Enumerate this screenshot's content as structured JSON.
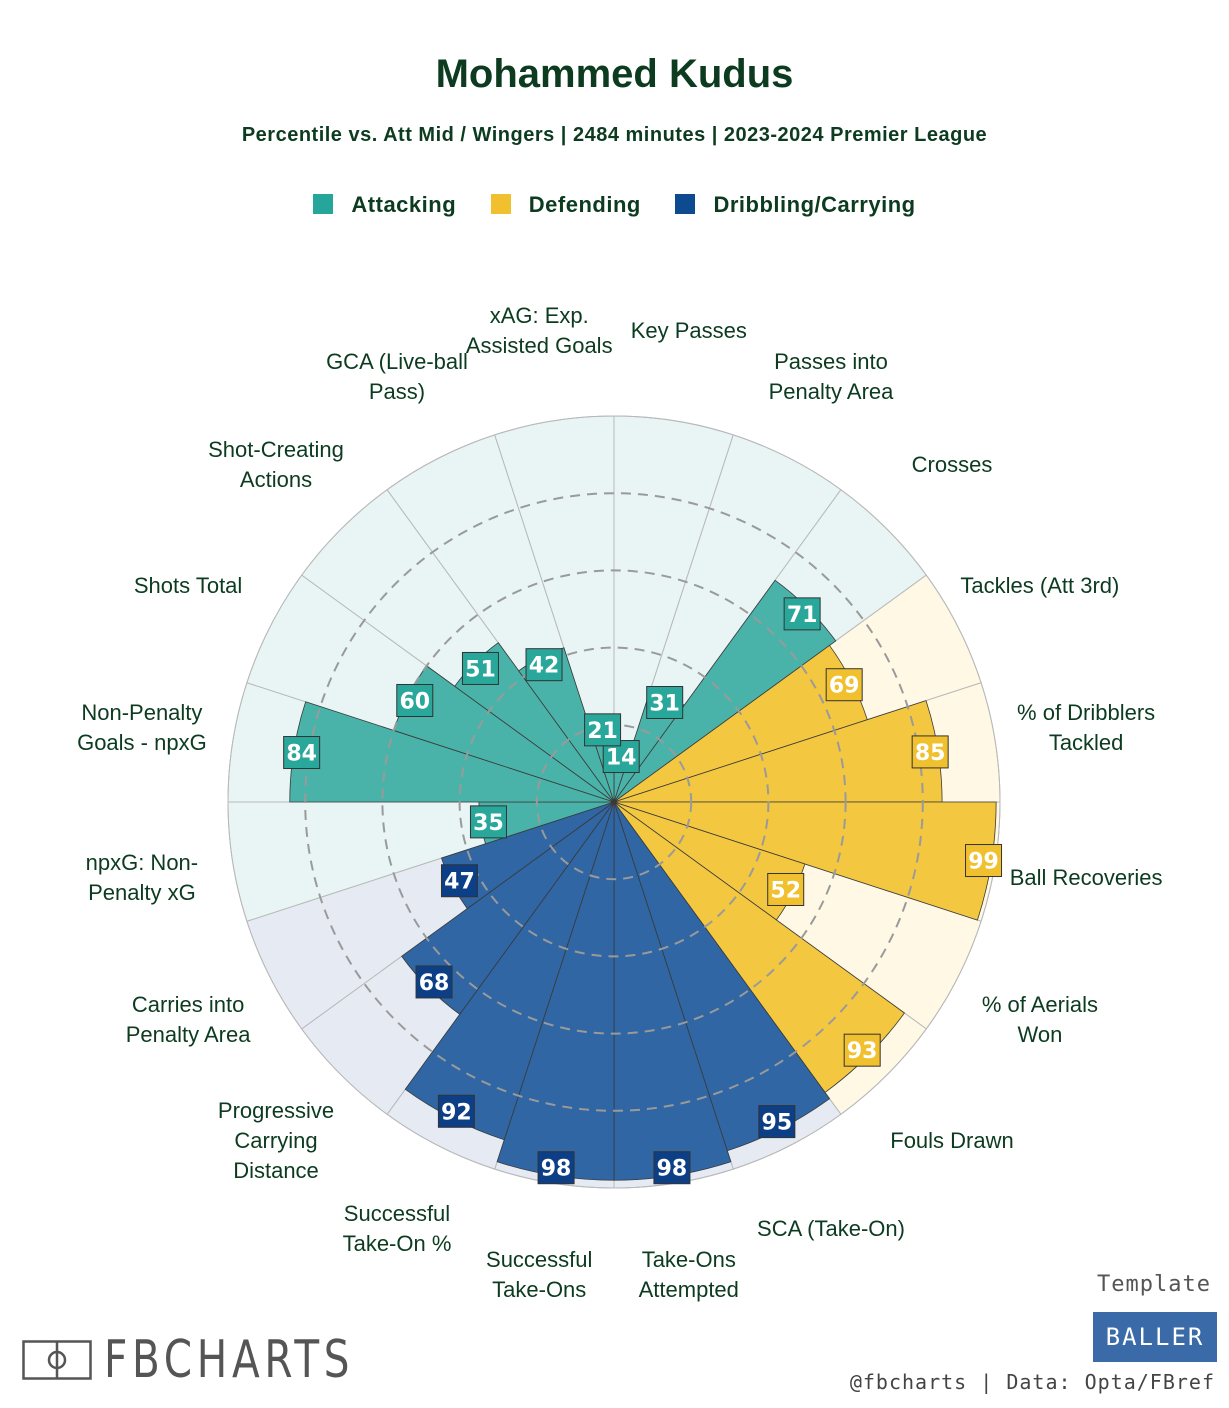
{
  "header": {
    "title": "Mohammed Kudus",
    "subtitle": "Percentile vs. Att Mid / Wingers | 2484 minutes | 2023-2024 Premier League"
  },
  "legend": [
    {
      "label": "Attacking",
      "color": "#26a69a"
    },
    {
      "label": "Defending",
      "color": "#f0c02e"
    },
    {
      "label": "Dribbling/Carrying",
      "color": "#0d4a8f"
    }
  ],
  "chart_data": {
    "type": "radar",
    "title": "Mohammed Kudus",
    "range": [
      0,
      100
    ],
    "gridlines": [
      20,
      40,
      60,
      80,
      100
    ],
    "groups": {
      "Attacking": {
        "fill": "#4ab3a9",
        "background": "#e8f5f4",
        "label_box": "#2aa79b"
      },
      "Defending": {
        "fill": "#f3c73f",
        "background": "#fff8e5",
        "label_box": "#f0c02e"
      },
      "Dribbling/Carrying": {
        "fill": "#2f66a3",
        "background": "#e6ebf3",
        "label_box": "#0c3f86"
      }
    },
    "metrics": [
      {
        "label": "Key Passes",
        "value": 14,
        "group": "Attacking"
      },
      {
        "label": "Passes into Penalty Area",
        "value": 31,
        "group": "Attacking"
      },
      {
        "label": "Crosses",
        "value": 71,
        "group": "Attacking"
      },
      {
        "label": "Tackles (Att 3rd)",
        "value": 69,
        "group": "Defending"
      },
      {
        "label": "% of Dribblers Tackled",
        "value": 85,
        "group": "Defending"
      },
      {
        "label": "Ball Recoveries",
        "value": 99,
        "group": "Defending"
      },
      {
        "label": "% of Aerials Won",
        "value": 52,
        "group": "Defending"
      },
      {
        "label": "Fouls Drawn",
        "value": 93,
        "group": "Defending"
      },
      {
        "label": "SCA (Take-On)",
        "value": 95,
        "group": "Dribbling/Carrying"
      },
      {
        "label": "Take-Ons Attempted",
        "value": 98,
        "group": "Dribbling/Carrying"
      },
      {
        "label": "Successful Take-Ons",
        "value": 98,
        "group": "Dribbling/Carrying"
      },
      {
        "label": "Successful Take-On %",
        "value": 92,
        "group": "Dribbling/Carrying"
      },
      {
        "label": "Progressive Carrying Distance",
        "value": 68,
        "group": "Dribbling/Carrying"
      },
      {
        "label": "Carries into Penalty Area",
        "value": 47,
        "group": "Dribbling/Carrying"
      },
      {
        "label": "npxG: Non-Penalty xG",
        "value": 35,
        "group": "Attacking"
      },
      {
        "label": "Non-Penalty Goals - npxG",
        "value": 84,
        "group": "Attacking"
      },
      {
        "label": "Shots Total",
        "value": 60,
        "group": "Attacking"
      },
      {
        "label": "Shot-Creating Actions",
        "value": 51,
        "group": "Attacking"
      },
      {
        "label": "GCA (Live-ball Pass)",
        "value": 42,
        "group": "Attacking"
      },
      {
        "label": "xAG: Exp. Assisted Goals",
        "value": 21,
        "group": "Attacking"
      }
    ]
  },
  "labels": [
    [
      "Key Passes"
    ],
    [
      "Passes into",
      "Penalty Area"
    ],
    [
      "Crosses"
    ],
    [
      "Tackles (Att 3rd)"
    ],
    [
      "% of Dribblers",
      "Tackled"
    ],
    [
      "Ball Recoveries"
    ],
    [
      "% of Aerials",
      "Won"
    ],
    [
      "Fouls Drawn"
    ],
    [
      "SCA (Take-On)"
    ],
    [
      "Take-Ons",
      "Attempted"
    ],
    [
      "Successful",
      "Take-Ons"
    ],
    [
      "Successful",
      "Take-On %"
    ],
    [
      "Progressive",
      "Carrying",
      "Distance"
    ],
    [
      "Carries into",
      "Penalty Area"
    ],
    [
      "npxG: Non-",
      "Penalty xG"
    ],
    [
      "Non-Penalty",
      "Goals - npxG"
    ],
    [
      "Shots Total"
    ],
    [
      "Shot-Creating",
      "Actions"
    ],
    [
      "GCA (Live-ball",
      "Pass)"
    ],
    [
      "xAG: Exp.",
      "Assisted Goals"
    ]
  ],
  "footer": {
    "template_label": "Template",
    "badge": "BALLER",
    "credit": "@fbcharts | Data: Opta/FBref",
    "logo_text": "FBCHARTS"
  }
}
